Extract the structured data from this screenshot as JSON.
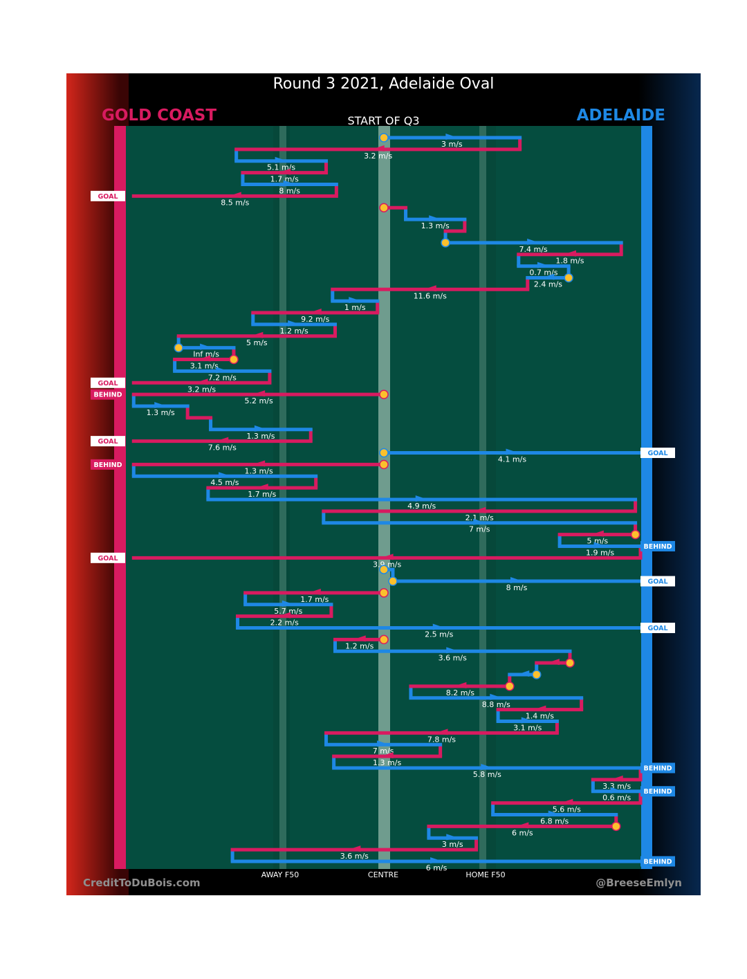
{
  "title": "Round 3 2021, Adelaide Oval",
  "subtitle": "START OF Q3",
  "teams": {
    "left": {
      "name": "GOLD COAST",
      "color": "#d81b60"
    },
    "right": {
      "name": "ADELAIDE",
      "color": "#1e88e5"
    }
  },
  "credits": {
    "left": "CreditToDuBois.com",
    "right": "@BreeseEmlyn"
  },
  "x_labels": {
    "away": "AWAY F50",
    "centre": "CENTRE",
    "home": "HOME F50"
  },
  "colors": {
    "field": "#054d3f",
    "gc": "#d81b60",
    "adl": "#1e88e5",
    "dot": "#fbc02d",
    "centre": "#6f9c8e",
    "line50": "#2f6b5c"
  },
  "chart_data": {
    "type": "chain-timeline",
    "x_range": [
      0,
      100
    ],
    "rows_total": 63,
    "x_ticks": {
      "away_f50": 41,
      "centre": 50,
      "home_f50": 59
    },
    "chains": [
      {
        "row": 0,
        "team": "adl",
        "from": 50,
        "to": 60.6,
        "speed": "3 m/s",
        "dot": "start"
      },
      {
        "row": 1,
        "team": "gc",
        "from": 60.6,
        "to": 38.5,
        "speed": "3.2 m/s"
      },
      {
        "row": 2,
        "team": "adl",
        "from": 38.5,
        "to": 45.5,
        "speed": "5.1 m/s"
      },
      {
        "row": 3,
        "team": "gc",
        "from": 45.5,
        "to": 39,
        "speed": "1.7 m/s"
      },
      {
        "row": 4,
        "team": "adl",
        "from": 39,
        "to": 46.3,
        "speed": "8 m/s"
      },
      {
        "row": 5,
        "team": "gc",
        "from": 46.3,
        "to": 30.5,
        "speed": "8.5 m/s",
        "end": "GOAL"
      },
      {
        "row": 6,
        "team": "gc",
        "from": 50,
        "to": 51.7,
        "dot": "start"
      },
      {
        "row": 7,
        "team": "adl",
        "from": 51.7,
        "to": 56.3,
        "speed": "1.3 m/s"
      },
      {
        "row": 8,
        "team": "gc",
        "from": 56.3,
        "to": 54.8
      },
      {
        "row": 9,
        "team": "adl",
        "from": 54.8,
        "to": 68.5,
        "speed": "7.4 m/s",
        "dot": "start"
      },
      {
        "row": 10,
        "team": "gc",
        "from": 68.5,
        "to": 60.5,
        "speed": "1.8 m/s"
      },
      {
        "row": 11,
        "team": "adl",
        "from": 60.5,
        "to": 64.4,
        "speed": "0.7 m/s"
      },
      {
        "row": 12,
        "team": "adl",
        "from": 64.4,
        "to": 61.2,
        "speed": "2.4 m/s",
        "dot": "start"
      },
      {
        "row": 13,
        "team": "gc",
        "from": 61.2,
        "to": 46,
        "speed": "11.6 m/s"
      },
      {
        "row": 14,
        "team": "adl",
        "from": 46,
        "to": 49.5,
        "speed": "1 m/s"
      },
      {
        "row": 15,
        "team": "gc",
        "from": 49.5,
        "to": 39.8,
        "speed": "9.2 m/s"
      },
      {
        "row": 16,
        "team": "adl",
        "from": 39.8,
        "to": 46.2,
        "speed": "1.2 m/s"
      },
      {
        "row": 17,
        "team": "gc",
        "from": 46.2,
        "to": 34,
        "speed": "5 m/s"
      },
      {
        "row": 18,
        "team": "adl",
        "from": 34,
        "to": 38.3,
        "speed": "Inf m/s",
        "dot": "start"
      },
      {
        "row": 19,
        "team": "gc",
        "from": 38.3,
        "to": 33.7,
        "speed": "3.1 m/s",
        "dot": "start"
      },
      {
        "row": 20,
        "team": "adl",
        "from": 33.7,
        "to": 41.1,
        "speed": "7.2 m/s"
      },
      {
        "row": 21,
        "team": "gc",
        "from": 41.1,
        "to": 30.5,
        "speed": "3.2 m/s",
        "end": "GOAL"
      },
      {
        "row": 22,
        "team": "gc",
        "from": 50,
        "to": 30.5,
        "speed": "5.2 m/s",
        "dot": "start",
        "end": "BEHIND"
      },
      {
        "row": 23,
        "team": "adl",
        "from": 30.5,
        "to": 34.7,
        "speed": "1.3 m/s"
      },
      {
        "row": 24,
        "team": "gc",
        "from": 34.7,
        "to": 36.5
      },
      {
        "row": 25,
        "team": "adl",
        "from": 36.5,
        "to": 44.3,
        "speed": "1.3 m/s"
      },
      {
        "row": 26,
        "team": "gc",
        "from": 44.3,
        "to": 30.5,
        "speed": "7.6 m/s",
        "end": "GOAL"
      },
      {
        "row": 27,
        "team": "adl",
        "from": 50,
        "to": 70,
        "speed": "4.1 m/s",
        "dot": "start",
        "end": "GOAL"
      },
      {
        "row": 28,
        "team": "gc",
        "from": 50,
        "to": 30.5,
        "speed": "1.3 m/s",
        "dot": "start",
        "end": "BEHIND"
      },
      {
        "row": 29,
        "team": "adl",
        "from": 30.5,
        "to": 44.7,
        "speed": "4.5 m/s"
      },
      {
        "row": 30,
        "team": "gc",
        "from": 44.7,
        "to": 36.3,
        "speed": "1.7 m/s"
      },
      {
        "row": 31,
        "team": "adl",
        "from": 36.3,
        "to": 69.6,
        "speed": "4.9 m/s"
      },
      {
        "row": 32,
        "team": "gc",
        "from": 69.6,
        "to": 45.3,
        "speed": "2.1 m/s"
      },
      {
        "row": 33,
        "team": "adl",
        "from": 45.3,
        "to": 69.6,
        "speed": "7 m/s"
      },
      {
        "row": 34,
        "team": "gc",
        "from": 69.6,
        "to": 63.7,
        "speed": "5 m/s",
        "dot": "start"
      },
      {
        "row": 35,
        "team": "adl",
        "from": 63.7,
        "to": 70,
        "speed": "1.9 m/s",
        "end": "BEHIND"
      },
      {
        "row": 36,
        "team": "gc",
        "from": 70,
        "to": 30.5,
        "speed": "3.9 m/s",
        "end": "GOAL"
      },
      {
        "row": 37,
        "team": "adl",
        "from": 50,
        "to": 50.7,
        "dot": "start"
      },
      {
        "row": 38,
        "team": "adl",
        "from": 50.7,
        "to": 70,
        "speed": "8 m/s",
        "dot": "start",
        "end": "GOAL"
      },
      {
        "row": 39,
        "team": "gc",
        "from": 50,
        "to": 39.2,
        "speed": "1.7 m/s",
        "dot": "start"
      },
      {
        "row": 40,
        "team": "adl",
        "from": 39.2,
        "to": 45.9,
        "speed": "5.7 m/s"
      },
      {
        "row": 41,
        "team": "gc",
        "from": 45.9,
        "to": 38.6,
        "speed": "2.2 m/s"
      },
      {
        "row": 42,
        "team": "adl",
        "from": 38.6,
        "to": 70,
        "speed": "2.5 m/s",
        "end": "GOAL"
      },
      {
        "row": 43,
        "team": "gc",
        "from": 50,
        "to": 46.2,
        "speed": "1.2 m/s",
        "dot": "start"
      },
      {
        "row": 44,
        "team": "adl",
        "from": 46.2,
        "to": 64.5,
        "speed": "3.6 m/s"
      },
      {
        "row": 45,
        "team": "gc",
        "from": 64.5,
        "to": 61.9,
        "dot": "start"
      },
      {
        "row": 46,
        "team": "adl",
        "from": 61.9,
        "to": 59.8,
        "dot": "start"
      },
      {
        "row": 47,
        "team": "gc",
        "from": 59.8,
        "to": 52.1,
        "speed": "8.2 m/s",
        "dot": "start"
      },
      {
        "row": 48,
        "team": "adl",
        "from": 52.1,
        "to": 65.4,
        "speed": "8.8 m/s"
      },
      {
        "row": 49,
        "team": "gc",
        "from": 65.4,
        "to": 58.9,
        "speed": "1.4 m/s"
      },
      {
        "row": 50,
        "team": "adl",
        "from": 58.9,
        "to": 63.5,
        "speed": "3.1 m/s"
      },
      {
        "row": 51,
        "team": "gc",
        "from": 63.5,
        "to": 45.5,
        "speed": "7.8 m/s"
      },
      {
        "row": 52,
        "team": "adl",
        "from": 45.5,
        "to": 54.4,
        "speed": "7 m/s"
      },
      {
        "row": 53,
        "team": "gc",
        "from": 54.4,
        "to": 46.1,
        "speed": "1.3 m/s"
      },
      {
        "row": 54,
        "team": "adl",
        "from": 46.1,
        "to": 70,
        "speed": "5.8 m/s",
        "end": "BEHIND"
      },
      {
        "row": 55,
        "team": "gc",
        "from": 70,
        "to": 66.3,
        "speed": "3.3 m/s"
      },
      {
        "row": 56,
        "team": "adl",
        "from": 66.3,
        "to": 70,
        "speed": "0.6 m/s",
        "end": "BEHIND"
      },
      {
        "row": 57,
        "team": "gc",
        "from": 70,
        "to": 58.5,
        "speed": "5.6 m/s"
      },
      {
        "row": 58,
        "team": "adl",
        "from": 58.5,
        "to": 68.1,
        "speed": "6.8 m/s"
      },
      {
        "row": 59,
        "team": "gc",
        "from": 68.1,
        "to": 53.5,
        "speed": "6 m/s",
        "dot": "start"
      },
      {
        "row": 60,
        "team": "adl",
        "from": 53.5,
        "to": 57.2,
        "speed": "3 m/s"
      },
      {
        "row": 61,
        "team": "gc",
        "from": 57.2,
        "to": 38.2,
        "speed": "3.6 m/s"
      },
      {
        "row": 62,
        "team": "adl",
        "from": 38.2,
        "to": 70,
        "speed": "6 m/s",
        "end": "BEHIND"
      }
    ]
  }
}
